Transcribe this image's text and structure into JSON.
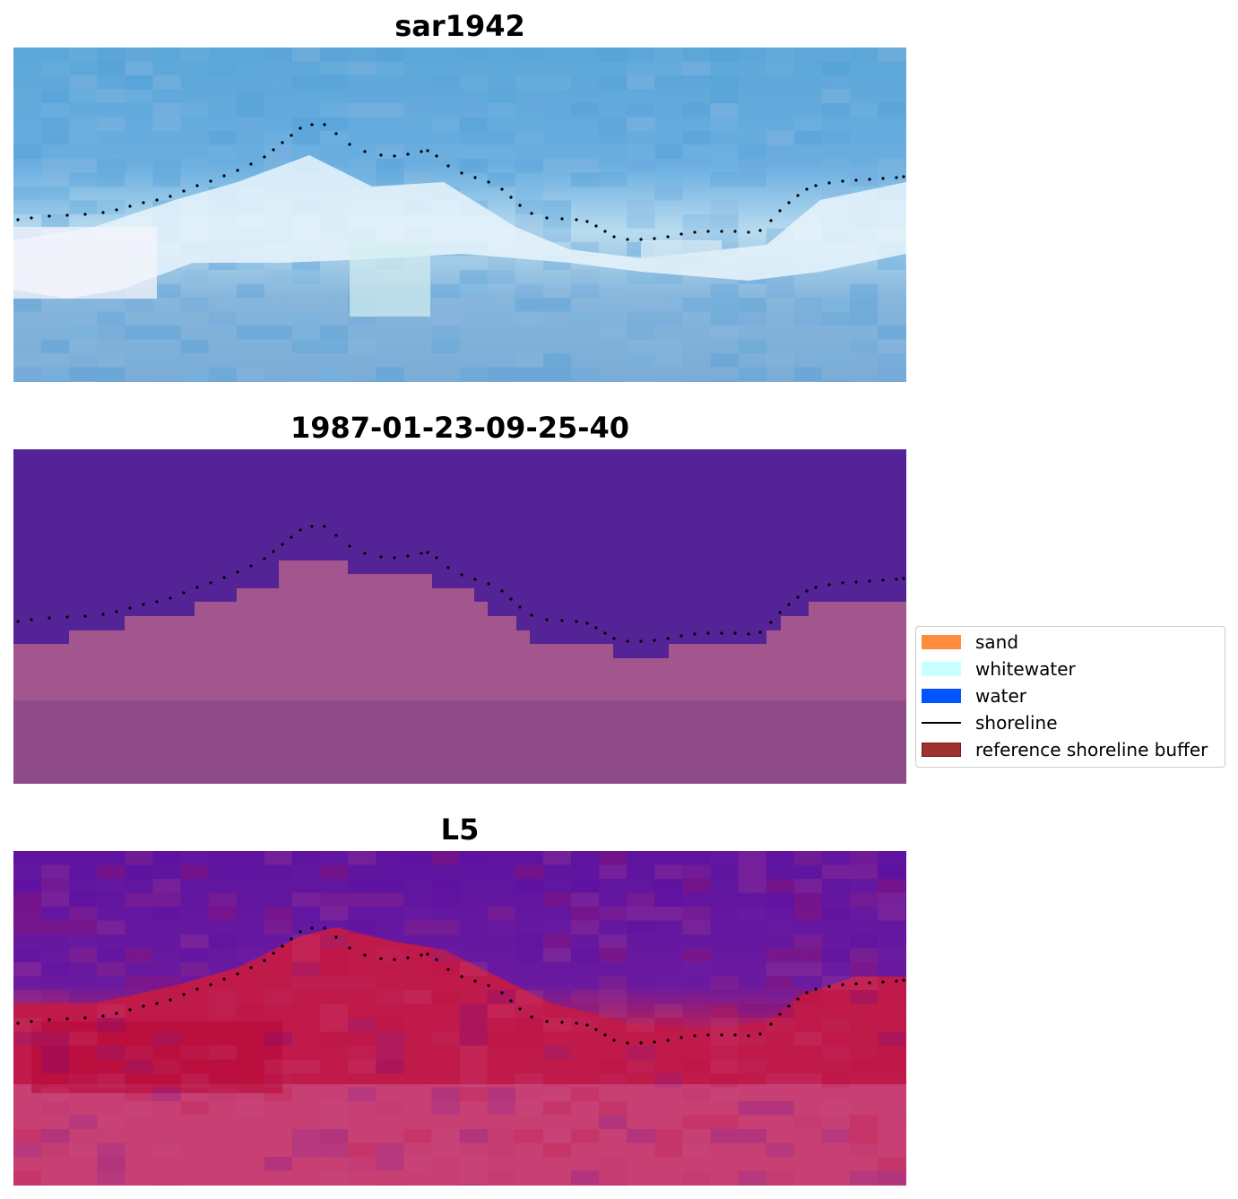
{
  "panels": [
    {
      "title": "sar1942"
    },
    {
      "title": "1987-01-23-09-25-40"
    },
    {
      "title": "L5"
    }
  ],
  "legend": {
    "items": [
      {
        "label": "sand",
        "color": "#ff8c3c",
        "kind": "patch"
      },
      {
        "label": "whitewater",
        "color": "#c8ffff",
        "kind": "patch"
      },
      {
        "label": "water",
        "color": "#0055ff",
        "kind": "patch"
      },
      {
        "label": "shoreline",
        "color": "#000000",
        "kind": "line"
      },
      {
        "label": "reference shoreline buffer",
        "color": "#a0312e",
        "kind": "patch"
      }
    ]
  }
}
